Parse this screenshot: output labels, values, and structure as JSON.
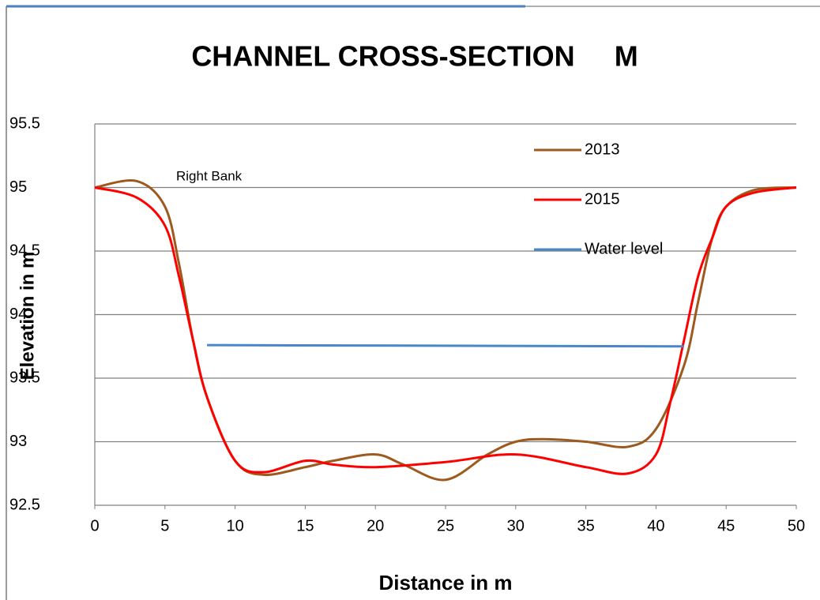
{
  "chart_data": {
    "type": "line",
    "title": "CHANNEL CROSS-SECTION     M",
    "x_label": "Distance in m",
    "y_label": "Elevation in m",
    "annotation": "Right Bank",
    "series": [
      {
        "name": "2013",
        "color": "#9c5a1e",
        "x": [
          0,
          3,
          5,
          6,
          7,
          8,
          10,
          12,
          15,
          17,
          20,
          22,
          25,
          28,
          30,
          32,
          35,
          38,
          40,
          42,
          43,
          44,
          45,
          47,
          50
        ],
        "values": [
          95,
          95.05,
          94.85,
          94.4,
          93.8,
          93.35,
          92.85,
          92.74,
          92.8,
          92.85,
          92.9,
          92.82,
          92.7,
          92.9,
          93.0,
          93.02,
          93.0,
          92.96,
          93.1,
          93.6,
          94.1,
          94.6,
          94.85,
          94.98,
          95
        ]
      },
      {
        "name": "2015",
        "color": "#ff0000",
        "x": [
          0,
          3,
          5,
          6,
          7,
          8,
          10,
          12,
          15,
          17,
          20,
          25,
          30,
          35,
          38,
          40,
          41,
          42,
          43,
          44,
          45,
          47,
          50
        ],
        "values": [
          95,
          94.92,
          94.7,
          94.3,
          93.8,
          93.35,
          92.85,
          92.76,
          92.85,
          92.82,
          92.8,
          92.84,
          92.9,
          92.8,
          92.75,
          92.9,
          93.3,
          93.8,
          94.3,
          94.6,
          94.85,
          94.96,
          95
        ]
      },
      {
        "name": "Water level",
        "color": "#4a86c8",
        "x": [
          8,
          42
        ],
        "values": [
          93.76,
          93.75
        ]
      }
    ],
    "xlim": [
      0,
      50
    ],
    "xticks": [
      0,
      5,
      10,
      15,
      20,
      25,
      30,
      35,
      40,
      45,
      50
    ],
    "ylim": [
      92.5,
      95.5
    ],
    "yticks": [
      92.5,
      93,
      93.5,
      94,
      94.5,
      95,
      95.5
    ],
    "grid": true,
    "legend": "upper right"
  }
}
